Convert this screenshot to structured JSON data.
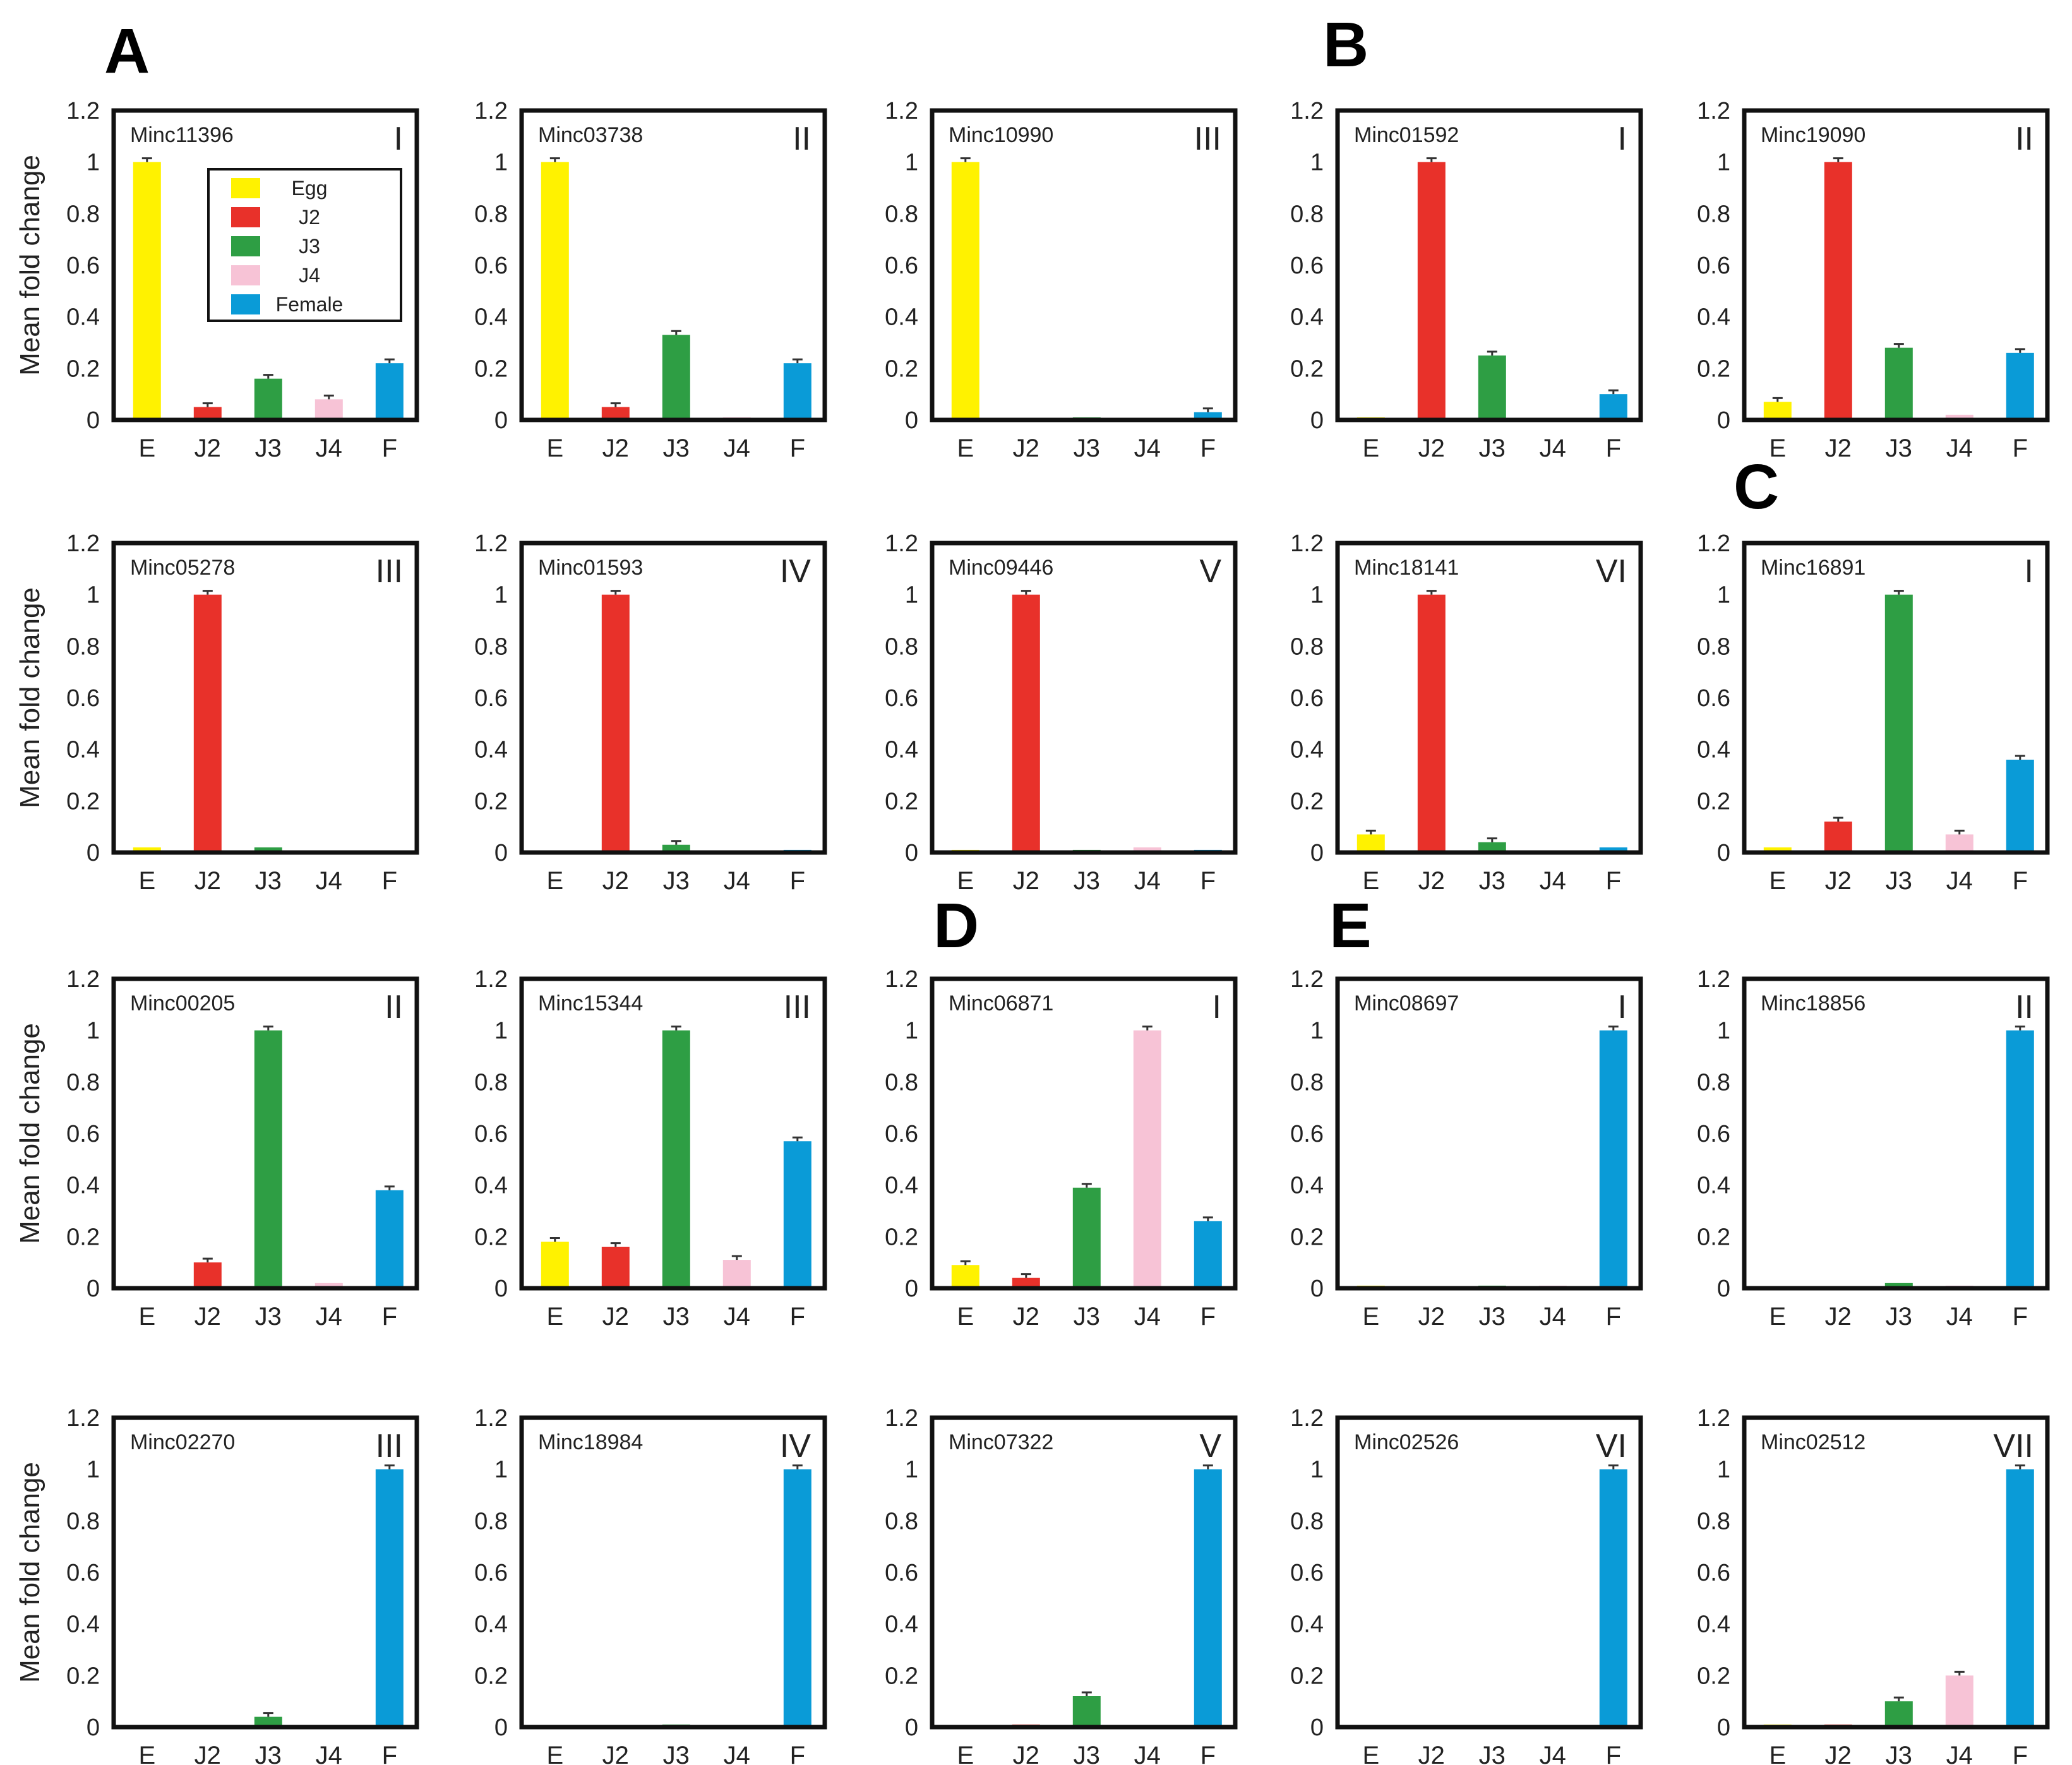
{
  "colors": {
    "E": "#FFF200",
    "J2": "#E8312A",
    "J3": "#2E9E44",
    "J4": "#F7C3D6",
    "F": "#0A9BD7",
    "frame": "#111111",
    "error": "#333333"
  },
  "panel_letters": [
    "A",
    "B",
    "C",
    "D",
    "E"
  ],
  "ylabel": "Mean fold change",
  "legend": {
    "items": [
      {
        "key": "E",
        "label": "Egg"
      },
      {
        "key": "J2",
        "label": "J2"
      },
      {
        "key": "J3",
        "label": "J3"
      },
      {
        "key": "J4",
        "label": "J4"
      },
      {
        "key": "F",
        "label": "Female"
      }
    ]
  },
  "chart_data": [
    {
      "type": "bar",
      "title": "Minc11396",
      "cluster": "I",
      "categories": [
        "E",
        "J2",
        "J3",
        "J4",
        "F"
      ],
      "values": [
        1.0,
        0.05,
        0.16,
        0.08,
        0.22
      ],
      "ylim": [
        0,
        1.2
      ],
      "yticks": [
        "0",
        "0.2",
        "0.4",
        "0.6",
        "0.8",
        "1",
        "1.2"
      ],
      "ylabel": "Mean fold change"
    },
    {
      "type": "bar",
      "title": "Minc03738",
      "cluster": "II",
      "categories": [
        "E",
        "J2",
        "J3",
        "J4",
        "F"
      ],
      "values": [
        1.0,
        0.05,
        0.33,
        0.01,
        0.22
      ],
      "ylim": [
        0,
        1.2
      ],
      "yticks": [
        "0",
        "0.2",
        "0.4",
        "0.6",
        "0.8",
        "1",
        "1.2"
      ]
    },
    {
      "type": "bar",
      "title": "Minc10990",
      "cluster": "III",
      "categories": [
        "E",
        "J2",
        "J3",
        "J4",
        "F"
      ],
      "values": [
        1.0,
        0.0,
        0.01,
        0.0,
        0.03
      ],
      "ylim": [
        0,
        1.2
      ],
      "yticks": [
        "0",
        "0.2",
        "0.4",
        "0.6",
        "0.8",
        "1",
        "1.2"
      ]
    },
    {
      "type": "bar",
      "title": "Minc01592",
      "cluster": "I",
      "categories": [
        "E",
        "J2",
        "J3",
        "J4",
        "F"
      ],
      "values": [
        0.01,
        1.0,
        0.25,
        0.0,
        0.1
      ],
      "ylim": [
        0,
        1.2
      ],
      "yticks": [
        "0",
        "0.2",
        "0.4",
        "0.6",
        "0.8",
        "1",
        "1.2"
      ]
    },
    {
      "type": "bar",
      "title": "Minc19090",
      "cluster": "II",
      "categories": [
        "E",
        "J2",
        "J3",
        "J4",
        "F"
      ],
      "values": [
        0.07,
        1.0,
        0.28,
        0.02,
        0.26
      ],
      "ylim": [
        0,
        1.2
      ],
      "yticks": [
        "0",
        "0.2",
        "0.4",
        "0.6",
        "0.8",
        "1",
        "1.2"
      ]
    },
    {
      "type": "bar",
      "title": "Minc05278",
      "cluster": "III",
      "categories": [
        "E",
        "J2",
        "J3",
        "J4",
        "F"
      ],
      "values": [
        0.02,
        1.0,
        0.02,
        0.0,
        0.0
      ],
      "ylim": [
        0,
        1.2
      ],
      "yticks": [
        "0",
        "0.2",
        "0.4",
        "0.6",
        "0.8",
        "1",
        "1.2"
      ],
      "ylabel": "Mean fold change"
    },
    {
      "type": "bar",
      "title": "Minc01593",
      "cluster": "IV",
      "categories": [
        "E",
        "J2",
        "J3",
        "J4",
        "F"
      ],
      "values": [
        0.0,
        1.0,
        0.03,
        0.0,
        0.01
      ],
      "ylim": [
        0,
        1.2
      ],
      "yticks": [
        "0",
        "0.2",
        "0.4",
        "0.6",
        "0.8",
        "1",
        "1.2"
      ]
    },
    {
      "type": "bar",
      "title": "Minc09446",
      "cluster": "V",
      "categories": [
        "E",
        "J2",
        "J3",
        "J4",
        "F"
      ],
      "values": [
        0.01,
        1.0,
        0.01,
        0.02,
        0.01
      ],
      "ylim": [
        0,
        1.2
      ],
      "yticks": [
        "0",
        "0.2",
        "0.4",
        "0.6",
        "0.8",
        "1",
        "1.2"
      ]
    },
    {
      "type": "bar",
      "title": "Minc18141",
      "cluster": "VI",
      "categories": [
        "E",
        "J2",
        "J3",
        "J4",
        "F"
      ],
      "values": [
        0.07,
        1.0,
        0.04,
        0.0,
        0.02
      ],
      "ylim": [
        0,
        1.2
      ],
      "yticks": [
        "0",
        "0.2",
        "0.4",
        "0.6",
        "0.8",
        "1",
        "1.2"
      ]
    },
    {
      "type": "bar",
      "title": "Minc16891",
      "cluster": "I",
      "categories": [
        "E",
        "J2",
        "J3",
        "J4",
        "F"
      ],
      "values": [
        0.02,
        0.12,
        1.0,
        0.07,
        0.36
      ],
      "ylim": [
        0,
        1.2
      ],
      "yticks": [
        "0",
        "0.2",
        "0.4",
        "0.6",
        "0.8",
        "1",
        "1.2"
      ]
    },
    {
      "type": "bar",
      "title": "Minc00205",
      "cluster": "II",
      "categories": [
        "E",
        "J2",
        "J3",
        "J4",
        "F"
      ],
      "values": [
        0.0,
        0.1,
        1.0,
        0.02,
        0.38
      ],
      "ylim": [
        0,
        1.2
      ],
      "yticks": [
        "0",
        "0.2",
        "0.4",
        "0.6",
        "0.8",
        "1",
        "1.2"
      ],
      "ylabel": "Mean fold change"
    },
    {
      "type": "bar",
      "title": "Minc15344",
      "cluster": "III",
      "categories": [
        "E",
        "J2",
        "J3",
        "J4",
        "F"
      ],
      "values": [
        0.18,
        0.16,
        1.0,
        0.11,
        0.57
      ],
      "ylim": [
        0,
        1.2
      ],
      "yticks": [
        "0",
        "0.2",
        "0.4",
        "0.6",
        "0.8",
        "1",
        "1.2"
      ]
    },
    {
      "type": "bar",
      "title": "Minc06871",
      "cluster": "I",
      "categories": [
        "E",
        "J2",
        "J3",
        "J4",
        "F"
      ],
      "values": [
        0.09,
        0.04,
        0.39,
        1.0,
        0.26
      ],
      "ylim": [
        0,
        1.2
      ],
      "yticks": [
        "0",
        "0.2",
        "0.4",
        "0.6",
        "0.8",
        "1",
        "1.2"
      ]
    },
    {
      "type": "bar",
      "title": "Minc08697",
      "cluster": "I",
      "categories": [
        "E",
        "J2",
        "J3",
        "J4",
        "F"
      ],
      "values": [
        0.01,
        0.0,
        0.01,
        0.01,
        1.0
      ],
      "ylim": [
        0,
        1.2
      ],
      "yticks": [
        "0",
        "0.2",
        "0.4",
        "0.6",
        "0.8",
        "1",
        "1.2"
      ]
    },
    {
      "type": "bar",
      "title": "Minc18856",
      "cluster": "II",
      "categories": [
        "E",
        "J2",
        "J3",
        "J4",
        "F"
      ],
      "values": [
        0.0,
        0.0,
        0.02,
        0.01,
        1.0
      ],
      "ylim": [
        0,
        1.2
      ],
      "yticks": [
        "0",
        "0.2",
        "0.4",
        "0.6",
        "0.8",
        "1",
        "1.2"
      ]
    },
    {
      "type": "bar",
      "title": "Minc02270",
      "cluster": "III",
      "categories": [
        "E",
        "J2",
        "J3",
        "J4",
        "F"
      ],
      "values": [
        0.0,
        0.0,
        0.04,
        0.0,
        1.0
      ],
      "ylim": [
        0,
        1.2
      ],
      "yticks": [
        "0",
        "0.2",
        "0.4",
        "0.6",
        "0.8",
        "1",
        "1.2"
      ],
      "ylabel": "Mean fold change"
    },
    {
      "type": "bar",
      "title": "Minc18984",
      "cluster": "IV",
      "categories": [
        "E",
        "J2",
        "J3",
        "J4",
        "F"
      ],
      "values": [
        0.0,
        0.0,
        0.01,
        0.0,
        1.0
      ],
      "ylim": [
        0,
        1.2
      ],
      "yticks": [
        "0",
        "0.2",
        "0.4",
        "0.6",
        "0.8",
        "1",
        "1.2"
      ]
    },
    {
      "type": "bar",
      "title": "Minc07322",
      "cluster": "V",
      "categories": [
        "E",
        "J2",
        "J3",
        "J4",
        "F"
      ],
      "values": [
        0.0,
        0.01,
        0.12,
        0.0,
        1.0
      ],
      "ylim": [
        0,
        1.2
      ],
      "yticks": [
        "0",
        "0.2",
        "0.4",
        "0.6",
        "0.8",
        "1",
        "1.2"
      ]
    },
    {
      "type": "bar",
      "title": "Minc02526",
      "cluster": "VI",
      "categories": [
        "E",
        "J2",
        "J3",
        "J4",
        "F"
      ],
      "values": [
        0.0,
        0.0,
        0.0,
        0.0,
        1.0
      ],
      "ylim": [
        0,
        1.2
      ],
      "yticks": [
        "0",
        "0.2",
        "0.4",
        "0.6",
        "0.8",
        "1",
        "1.2"
      ]
    },
    {
      "type": "bar",
      "title": "Minc02512",
      "cluster": "VII",
      "categories": [
        "E",
        "J2",
        "J3",
        "J4",
        "F"
      ],
      "values": [
        0.01,
        0.01,
        0.1,
        0.2,
        1.0
      ],
      "ylim": [
        0,
        1.2
      ],
      "yticks": [
        "0",
        "0.2",
        "0.4",
        "0.6",
        "0.8",
        "1",
        "1.2"
      ]
    }
  ]
}
